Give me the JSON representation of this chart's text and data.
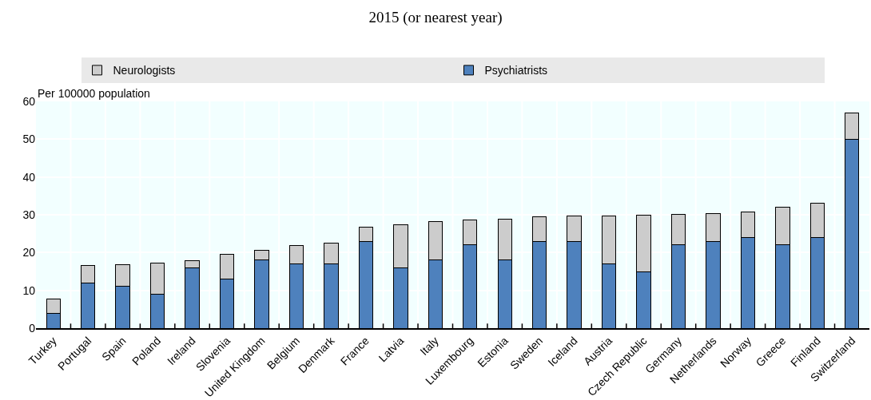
{
  "chart_data": {
    "type": "bar",
    "title": "2015 (or nearest year)",
    "ylabel": "Per 100000 population",
    "categories": [
      "Turkey",
      "Portugal",
      "Spain",
      "Poland",
      "Ireland",
      "Slovenia",
      "United Kingdom",
      "Belgium",
      "Denmark",
      "France",
      "Latvia",
      "Italy",
      "Luxembourg",
      "Estonia",
      "Sweden",
      "Iceland",
      "Austria",
      "Czech Republic",
      "Germany",
      "Netherlands",
      "Norway",
      "Greece",
      "Finland",
      "Switzerland"
    ],
    "series": [
      {
        "name": "Psychiatrists",
        "color": "#4e81bd",
        "values": [
          4,
          12,
          11,
          9,
          16,
          13,
          18,
          17,
          17,
          23,
          16,
          18,
          22,
          18,
          23,
          23,
          17,
          15,
          22,
          23,
          24,
          22,
          24,
          50
        ]
      },
      {
        "name": "Neurologists",
        "color": "#cccccc",
        "values": [
          3.8,
          4.6,
          5.8,
          8.2,
          1.9,
          6.5,
          2.7,
          4.9,
          5.6,
          3.7,
          11.4,
          10.3,
          6.7,
          10.9,
          6.4,
          6.6,
          12.7,
          14.9,
          8.1,
          7.4,
          6.8,
          10.1,
          9,
          6.9
        ]
      }
    ],
    "stacked": true,
    "ylim": [
      0,
      60
    ],
    "yticks": [
      0,
      10,
      20,
      30,
      40,
      50,
      60
    ],
    "grid": true,
    "legend": "top"
  }
}
